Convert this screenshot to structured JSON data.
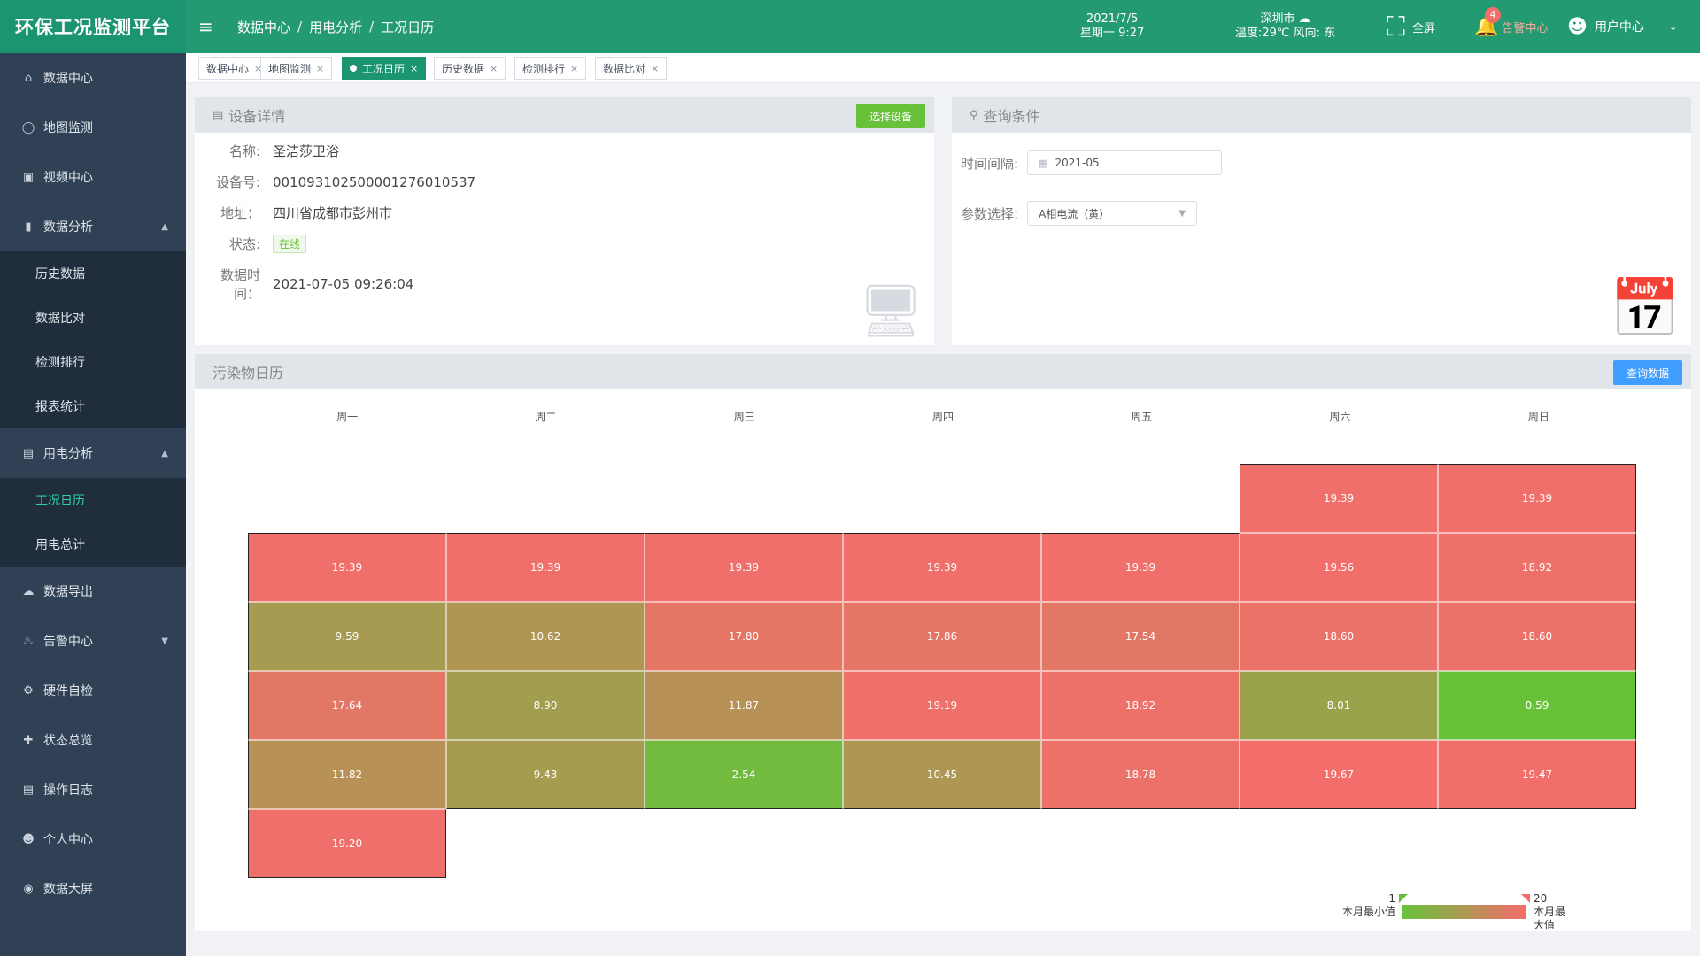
{
  "app": {
    "title": "环保工况监测平台"
  },
  "header": {
    "breadcrumb": [
      "数据中心",
      "用电分析",
      "工况日历"
    ],
    "date": "2021/7/5",
    "weekday_time": "星期一 9:27",
    "city": "深圳市",
    "weather": "温度:29℃ 风向: 东",
    "fullscreen_label": "全屏",
    "alarm_label": "告警中心",
    "alarm_count": "4",
    "user_label": "用户中心"
  },
  "sidebar": {
    "items": [
      {
        "label": "数据中心",
        "icon": "home-icon"
      },
      {
        "label": "地图监测",
        "icon": "map-pin-icon"
      },
      {
        "label": "视频中心",
        "icon": "camera-icon"
      },
      {
        "label": "数据分析",
        "icon": "bar-chart-icon",
        "expanded": true,
        "children": [
          "历史数据",
          "数据比对",
          "检测排行",
          "报表统计"
        ]
      },
      {
        "label": "用电分析",
        "icon": "line-chart-icon",
        "expanded": true,
        "children": [
          "工况日历",
          "用电总计"
        ],
        "active_child": "工况日历"
      },
      {
        "label": "数据导出",
        "icon": "cloud-download-icon"
      },
      {
        "label": "告警中心",
        "icon": "bell-icon",
        "collapsible": true
      },
      {
        "label": "硬件自检",
        "icon": "chip-icon"
      },
      {
        "label": "状态总览",
        "icon": "status-icon"
      },
      {
        "label": "操作日志",
        "icon": "document-icon"
      },
      {
        "label": "个人中心",
        "icon": "user-icon"
      },
      {
        "label": "数据大屏",
        "icon": "screen-icon"
      }
    ]
  },
  "tags": [
    "数据中心",
    "地图监测",
    "工况日历",
    "历史数据",
    "检测排行",
    "数据比对"
  ],
  "active_tag": "工况日历",
  "device": {
    "title": "设备详情",
    "select_button": "选择设备",
    "fields": [
      {
        "label": "名称:",
        "value": "圣洁莎卫浴"
      },
      {
        "label": "设备号:",
        "value": "00109310250000127601053​7"
      },
      {
        "label": "地址：",
        "value": "四川省成都市彭州市"
      },
      {
        "label": "状态:",
        "value": "在线"
      },
      {
        "label": "数据时间：",
        "value": "2021-07-05 09:26:04"
      }
    ]
  },
  "query": {
    "title": "查询条件",
    "interval_label": "时间间隔:",
    "interval_value": "2021-05",
    "param_label": "参数选择:",
    "param_value": "A相电流（黄）"
  },
  "calendar": {
    "title": "污染物日历",
    "query_button": "查询数据",
    "weekdays": [
      "周一",
      "周二",
      "周三",
      "周四",
      "周五",
      "周六",
      "周日"
    ],
    "first_weekday_index": 5,
    "values": [
      19.39,
      19.39,
      19.39,
      19.39,
      19.39,
      19.39,
      19.39,
      19.56,
      18.92,
      9.59,
      10.62,
      17.8,
      17.86,
      17.54,
      18.6,
      18.6,
      17.64,
      8.9,
      11.87,
      19.19,
      18.92,
      8.01,
      0.59,
      11.82,
      9.43,
      2.54,
      10.45,
      18.78,
      19.67,
      19.47,
      19.2
    ],
    "min": 1,
    "max": 20,
    "min_label": "本月最小值",
    "max_label": "本月最大值",
    "min_color": "#67c23a",
    "max_color": "#f56c6c"
  }
}
